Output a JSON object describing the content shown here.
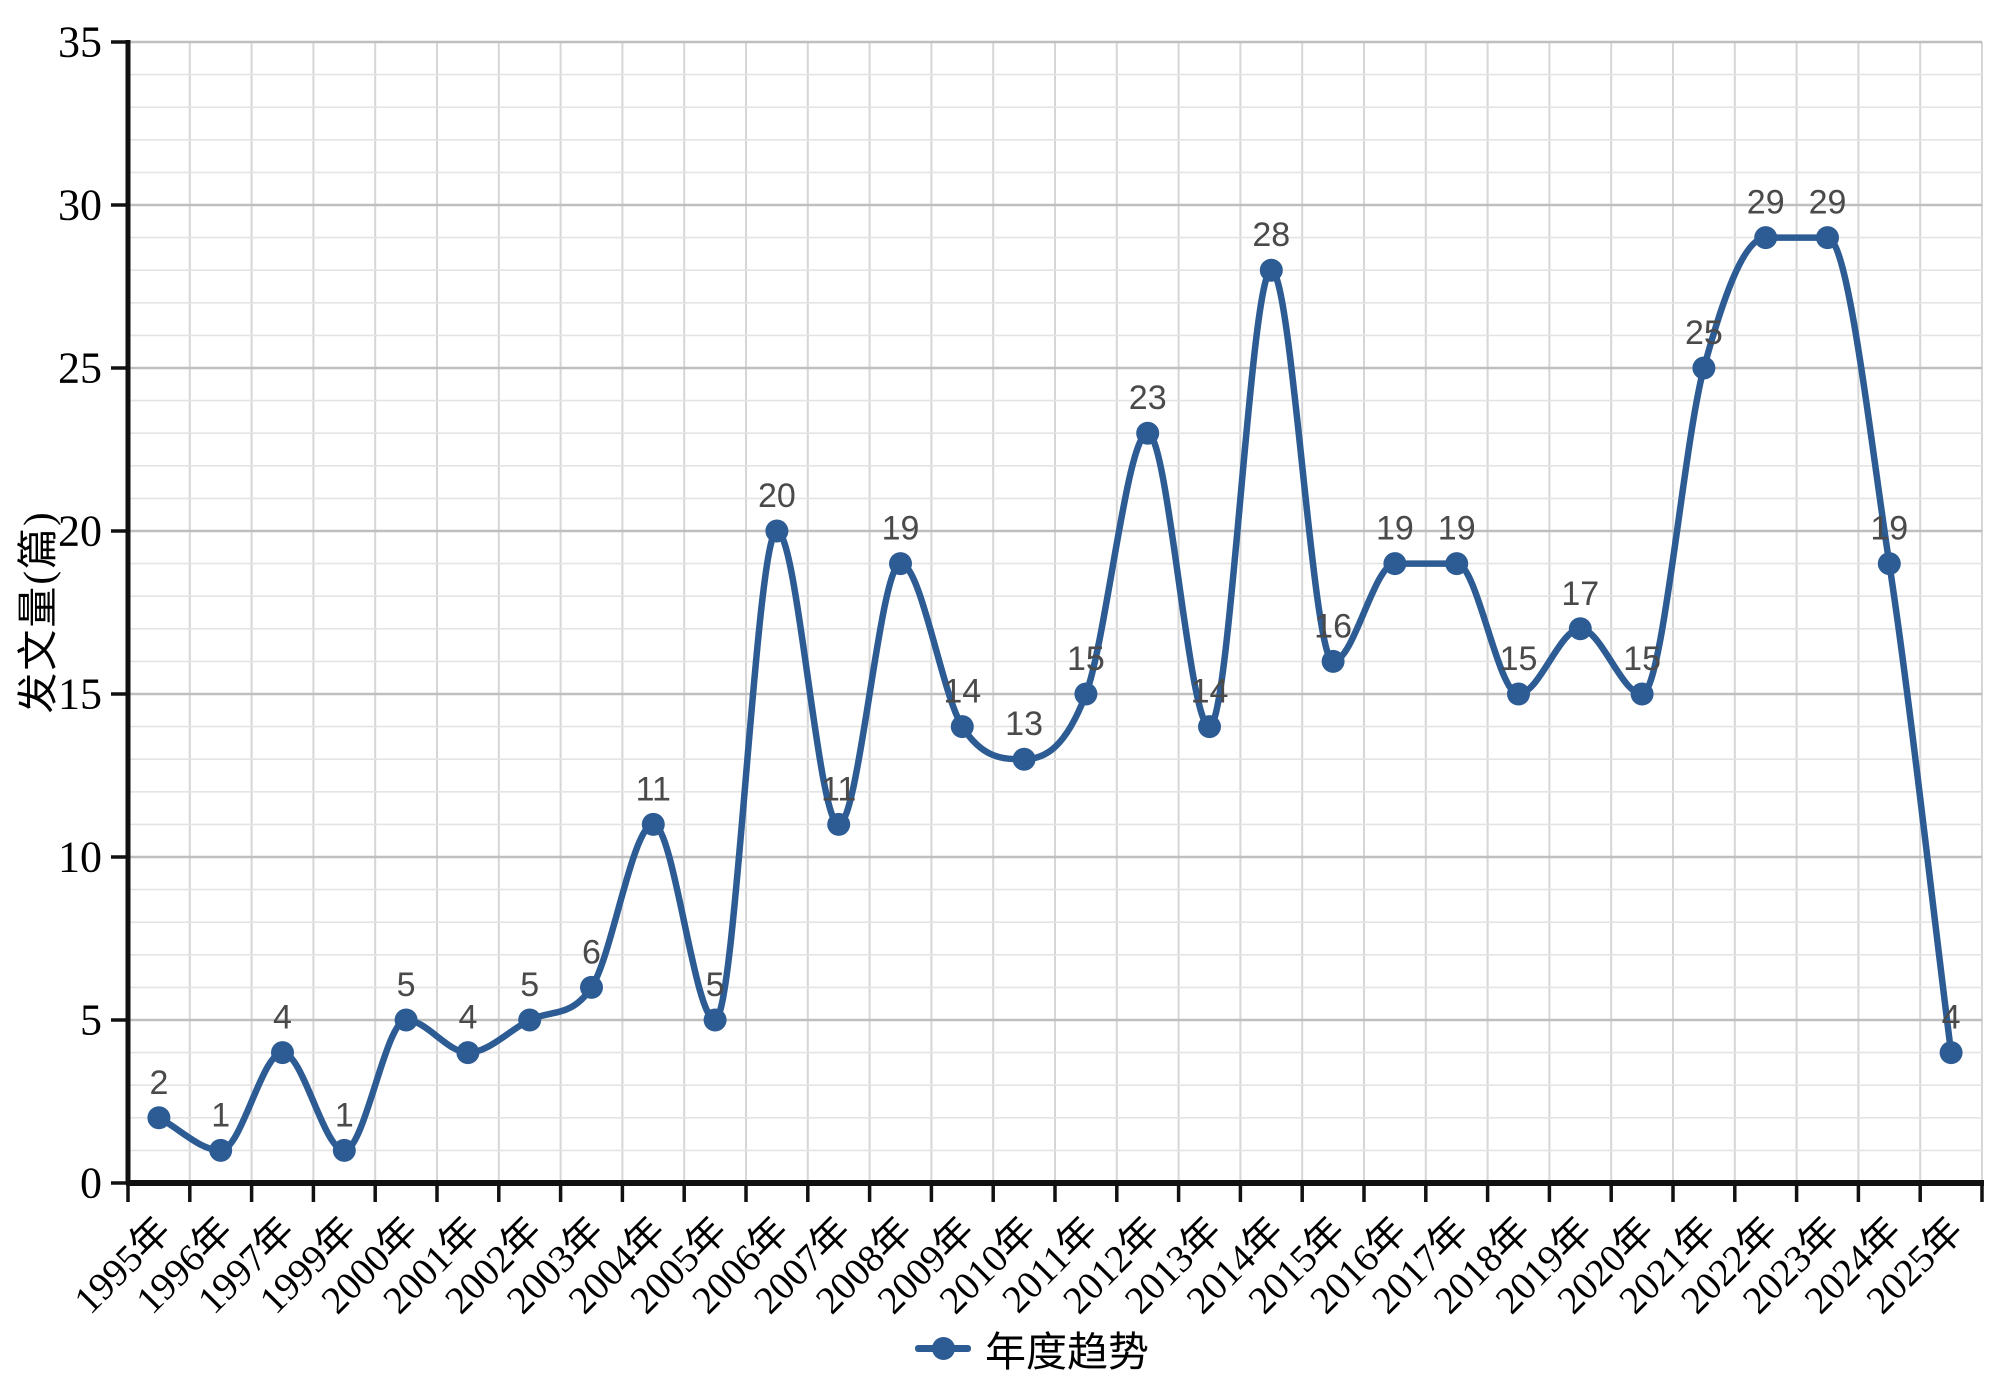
{
  "chart_data": {
    "type": "line",
    "title": "",
    "categories": [
      "1995年",
      "1996年",
      "1997年",
      "1999年",
      "2000年",
      "2001年",
      "2002年",
      "2003年",
      "2004年",
      "2005年",
      "2006年",
      "2007年",
      "2008年",
      "2009年",
      "2010年",
      "2011年",
      "2012年",
      "2013年",
      "2014年",
      "2015年",
      "2016年",
      "2017年",
      "2018年",
      "2019年",
      "2020年",
      "2021年",
      "2022年",
      "2023年",
      "2024年",
      "2025年"
    ],
    "series": [
      {
        "name": "年度趋势",
        "values": [
          2,
          1,
          4,
          1,
          5,
          4,
          5,
          6,
          11,
          5,
          20,
          11,
          19,
          14,
          13,
          15,
          23,
          14,
          28,
          16,
          19,
          19,
          15,
          17,
          15,
          25,
          29,
          29,
          19,
          4
        ]
      }
    ],
    "xlabel": "",
    "ylabel": "发文量(篇)",
    "ylim": [
      0,
      35
    ],
    "y_ticks": [
      0,
      5,
      10,
      15,
      20,
      25,
      30,
      35
    ],
    "grid": "on",
    "legend_position": "bottom",
    "colors": {
      "line": "#2d5c94",
      "marker": "#2d5c94",
      "data_label": "#4a4a4a",
      "axis": "#111111",
      "tick_label": "#000000",
      "grid_minor": "#e4e4e4",
      "grid_major": "#bfbfbf",
      "grid_vertical": "#d6d6d6",
      "background": "#ffffff"
    }
  }
}
